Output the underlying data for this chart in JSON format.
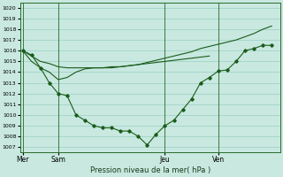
{
  "background_color": "#c8e8e0",
  "grid_color": "#90c8bc",
  "line_color": "#1a5c1a",
  "title": "Pression niveau de la mer( hPa )",
  "ylim": [
    1006.5,
    1020.5
  ],
  "yticks": [
    1007,
    1008,
    1009,
    1010,
    1011,
    1012,
    1013,
    1014,
    1015,
    1016,
    1017,
    1018,
    1019,
    1020
  ],
  "figsize": [
    3.2,
    2.0
  ],
  "dpi": 100,
  "series1_x": [
    0,
    1,
    2,
    3,
    4,
    5,
    6,
    7,
    8,
    9,
    10,
    11,
    12,
    13,
    14,
    15,
    16,
    17,
    18,
    19,
    20,
    21,
    22,
    23,
    24,
    25,
    26,
    27,
    28
  ],
  "series1_y": [
    1016.0,
    1015.6,
    1014.4,
    1013.0,
    1012.0,
    1011.8,
    1010.0,
    1009.5,
    1009.0,
    1008.8,
    1008.8,
    1008.5,
    1008.5,
    1008.0,
    1007.2,
    1008.2,
    1009.0,
    1009.5,
    1010.5,
    1011.5,
    1013.0,
    1013.5,
    1014.1,
    1014.2,
    1015.0,
    1016.0,
    1016.2,
    1016.5,
    1016.5
  ],
  "series2_x": [
    0,
    1,
    2,
    3,
    4,
    5,
    6,
    7,
    8,
    9,
    10,
    11,
    12,
    13,
    14,
    15,
    16,
    17,
    18,
    19,
    20,
    21
  ],
  "series2_y": [
    1016.0,
    1015.5,
    1015.0,
    1014.8,
    1014.5,
    1014.4,
    1014.4,
    1014.4,
    1014.4,
    1014.4,
    1014.5,
    1014.5,
    1014.6,
    1014.7,
    1014.8,
    1014.9,
    1015.0,
    1015.1,
    1015.2,
    1015.3,
    1015.4,
    1015.5
  ],
  "series3_x": [
    0,
    1,
    2,
    3,
    4,
    5,
    6,
    7,
    8,
    9,
    10,
    11,
    12,
    13,
    14,
    15,
    16,
    17,
    18,
    19,
    20,
    21,
    22,
    23,
    24,
    25,
    26,
    27,
    28
  ],
  "series3_y": [
    1016.0,
    1015.0,
    1014.4,
    1014.0,
    1013.3,
    1013.5,
    1014.0,
    1014.3,
    1014.4,
    1014.4,
    1014.4,
    1014.5,
    1014.6,
    1014.7,
    1014.9,
    1015.1,
    1015.3,
    1015.5,
    1015.7,
    1015.9,
    1016.2,
    1016.4,
    1016.6,
    1016.8,
    1017.0,
    1017.3,
    1017.6,
    1018.0,
    1018.3
  ],
  "vline_positions": [
    0,
    4,
    16,
    22
  ],
  "xtick_positions": [
    0,
    4,
    16,
    22
  ],
  "xtick_labels": [
    "Mer",
    "Sam",
    "Jeu",
    "Ven"
  ],
  "xlim": [
    -0.3,
    29
  ]
}
